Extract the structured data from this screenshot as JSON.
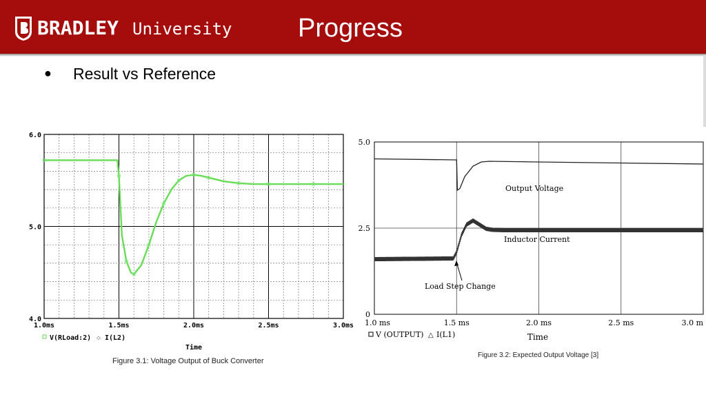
{
  "header": {
    "logo_word": "BRADLEY",
    "logo_sub": "University",
    "title": "Progress",
    "color": "#a50d0d"
  },
  "bullet": {
    "text": "Result vs Reference"
  },
  "chart_data": [
    {
      "type": "line",
      "xlabel": "Time",
      "x_ticks": [
        "1.0ms",
        "1.5ms",
        "2.0ms",
        "2.5ms",
        "3.0ms"
      ],
      "y_ticks": [
        "4.0",
        "5.0",
        "6.0"
      ],
      "xlim": [
        1.0,
        3.0
      ],
      "ylim": [
        4.0,
        6.0
      ],
      "grid": true,
      "legend": [
        "V(RLoad:2)",
        "I(L2)"
      ],
      "caption": "Figure 3.1: Voltage Output of Buck Converter",
      "series": [
        {
          "name": "V(RLoad:2)",
          "color": "#66dd55",
          "x": [
            1.0,
            1.49,
            1.5,
            1.52,
            1.55,
            1.58,
            1.6,
            1.65,
            1.7,
            1.75,
            1.8,
            1.85,
            1.9,
            1.95,
            2.0,
            2.05,
            2.1,
            2.2,
            2.3,
            2.4,
            2.5,
            2.6,
            2.8,
            3.0
          ],
          "y": [
            5.72,
            5.72,
            5.55,
            4.9,
            4.62,
            4.5,
            4.48,
            4.58,
            4.8,
            5.05,
            5.25,
            5.4,
            5.5,
            5.55,
            5.56,
            5.55,
            5.53,
            5.49,
            5.47,
            5.46,
            5.46,
            5.46,
            5.46,
            5.46
          ]
        }
      ]
    },
    {
      "type": "line",
      "xlabel": "Time",
      "x_ticks": [
        "1.0 ms",
        "1.5 ms",
        "2.0 ms",
        "2.5 ms",
        "3.0 m"
      ],
      "y_ticks": [
        "0",
        "2.5",
        "5.0"
      ],
      "xlim": [
        1.0,
        3.0
      ],
      "ylim": [
        0,
        5.0
      ],
      "grid": true,
      "legend": [
        "V (OUTPUT)",
        "I(L1)"
      ],
      "annotations": [
        "Output Voltage",
        "Inductor Current",
        "Load Step Change"
      ],
      "caption": "Figure 3.2: Expected Output Voltage [3]",
      "series": [
        {
          "name": "V (OUTPUT)",
          "color": "#222222",
          "x": [
            1.0,
            1.5,
            1.505,
            1.52,
            1.55,
            1.6,
            1.65,
            1.7,
            2.0,
            2.5,
            3.0
          ],
          "y": [
            4.51,
            4.48,
            3.6,
            3.65,
            4.0,
            4.3,
            4.42,
            4.44,
            4.42,
            4.39,
            4.36
          ]
        },
        {
          "name": "I(L1)",
          "color": "#222222",
          "x": [
            1.0,
            1.48,
            1.5,
            1.53,
            1.56,
            1.6,
            1.64,
            1.68,
            1.72,
            1.8,
            2.0,
            3.0
          ],
          "y": [
            1.6,
            1.62,
            1.8,
            2.3,
            2.6,
            2.72,
            2.6,
            2.48,
            2.45,
            2.44,
            2.44,
            2.44
          ]
        }
      ]
    }
  ]
}
